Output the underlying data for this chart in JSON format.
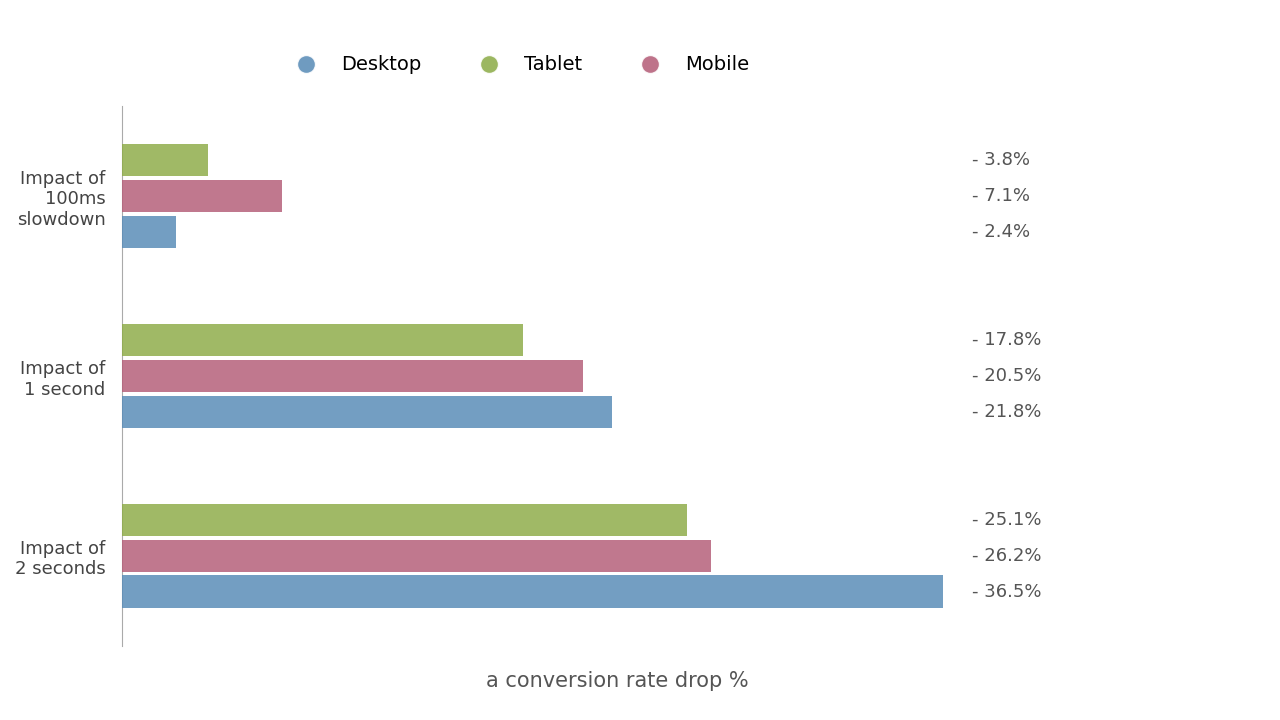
{
  "categories": [
    "Impact of\n100ms\nslowdown",
    "Impact of\n1 second",
    "Impact of\n2 seconds"
  ],
  "series": {
    "Desktop": [
      2.4,
      21.8,
      36.5
    ],
    "Mobile": [
      7.1,
      20.5,
      26.2
    ],
    "Tablet": [
      3.8,
      17.8,
      25.1
    ]
  },
  "colors": {
    "Desktop": "#5b8db8",
    "Mobile": "#b5607a",
    "Tablet": "#8fad4b"
  },
  "labels": {
    "Desktop": [
      "- 2.4%",
      "- 21.8%",
      "- 36.5%"
    ],
    "Mobile": [
      "- 7.1%",
      "- 20.5%",
      "- 26.2%"
    ],
    "Tablet": [
      "- 3.8%",
      "- 17.8%",
      "- 25.1%"
    ]
  },
  "xlabel": "a conversion rate drop %",
  "legend_order": [
    "Desktop",
    "Tablet",
    "Mobile"
  ],
  "bar_height": 0.22,
  "background_color": "#ffffff",
  "label_fontsize": 13,
  "tick_fontsize": 13,
  "xlabel_fontsize": 15,
  "legend_fontsize": 14
}
